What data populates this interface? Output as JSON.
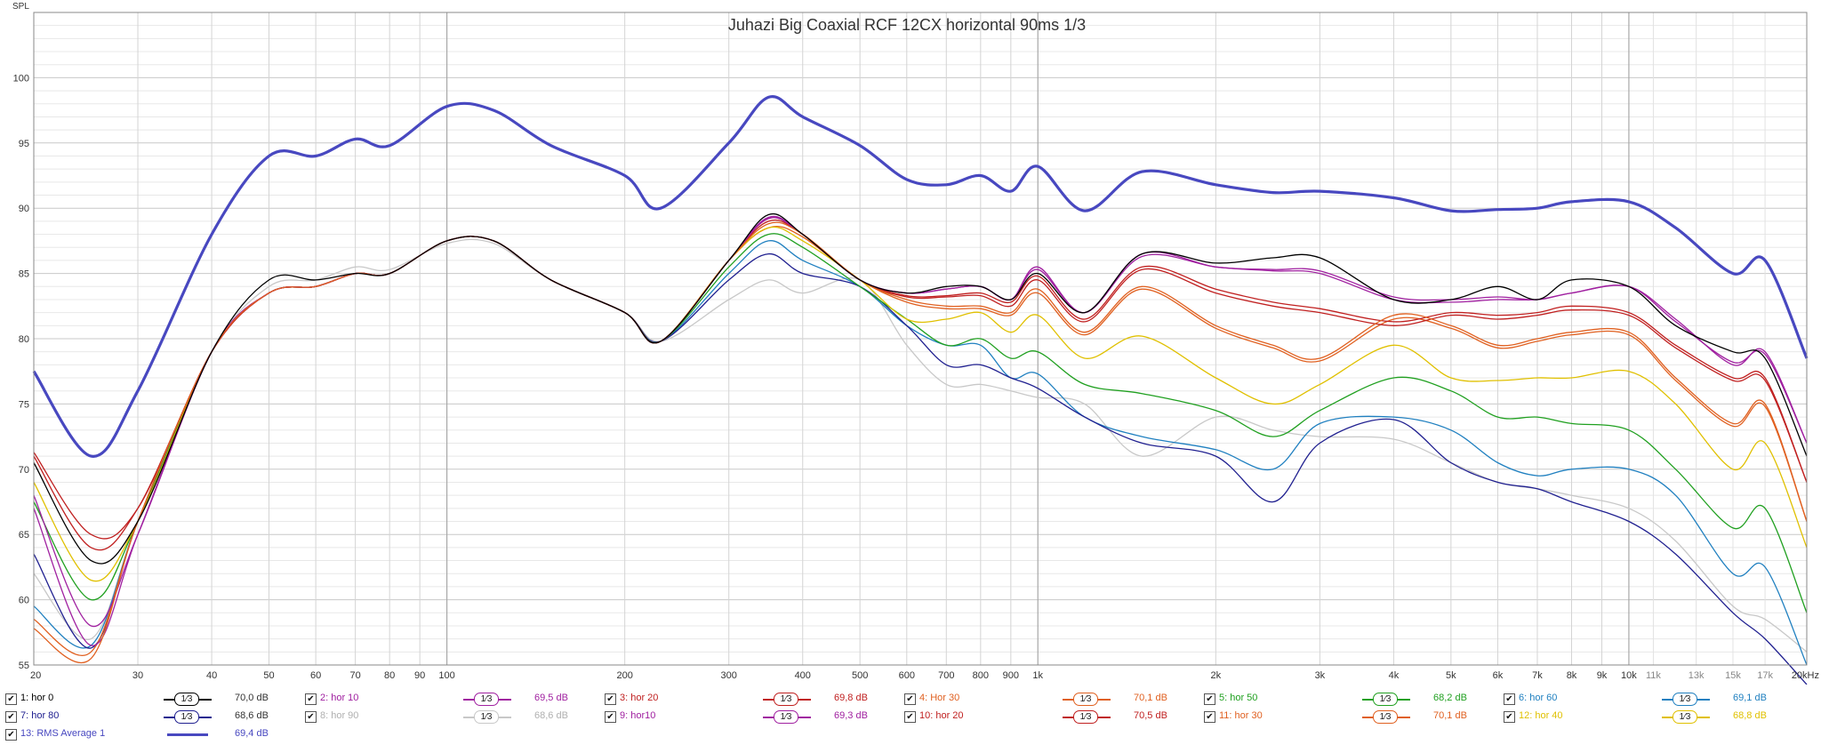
{
  "chart_data": {
    "type": "line",
    "title": "Juhazi Big Coaxial RCF 12CX horizontal 90ms 1/3",
    "ylabel": "SPL",
    "xlabel": "",
    "x_scale": "log",
    "xlim": [
      20,
      20000
    ],
    "ylim": [
      55,
      105
    ],
    "grid": true,
    "y_ticks": [
      "55",
      "60",
      "65",
      "70",
      "75",
      "80",
      "85",
      "90",
      "95",
      "100"
    ],
    "x_ticks": [
      "20",
      "30",
      "40",
      "50",
      "60",
      "70",
      "80",
      "90",
      "100",
      "200",
      "300",
      "400",
      "500",
      "600",
      "700",
      "800",
      "900",
      "1k",
      "2k",
      "3k",
      "4k",
      "5k",
      "6k",
      "7k",
      "8k",
      "9k",
      "10k",
      "11k",
      "13k",
      "15k",
      "17k",
      "20kHz"
    ],
    "x": [
      20,
      25,
      30,
      40,
      50,
      60,
      70,
      80,
      100,
      120,
      150,
      200,
      230,
      300,
      350,
      400,
      500,
      600,
      700,
      800,
      900,
      1000,
      1200,
      1500,
      2000,
      2500,
      3000,
      4000,
      5000,
      6000,
      7000,
      8000,
      10000,
      12000,
      15000,
      17000,
      20000
    ],
    "series": [
      {
        "name": "1: hor 0",
        "color": "#000000",
        "width": 1.3,
        "values": [
          70.5,
          63,
          66,
          79,
          84.5,
          84.5,
          85,
          85,
          87.5,
          87.5,
          84.5,
          82,
          79.8,
          86,
          89.5,
          88,
          84.5,
          83.5,
          84,
          84,
          83,
          85,
          82,
          86.5,
          85.8,
          86.2,
          86.2,
          83,
          83,
          84,
          83,
          84.5,
          84,
          81,
          79,
          78.5,
          71
        ]
      },
      {
        "name": "2: hor 10",
        "color": "#a020a0",
        "width": 1.3,
        "values": [
          67,
          56.5,
          65,
          79,
          83.5,
          84,
          85,
          85,
          87.5,
          87.5,
          84.5,
          82,
          79.8,
          86,
          89.3,
          88,
          84.5,
          83.5,
          83.8,
          84,
          83,
          85.5,
          82,
          86.5,
          85.5,
          85.3,
          85.2,
          83.2,
          83,
          83.2,
          83,
          83.5,
          84,
          81.5,
          78,
          79,
          72
        ]
      },
      {
        "name": "3: hor 20",
        "color": "#c02020",
        "width": 1.3,
        "values": [
          71.3,
          65,
          67,
          79,
          83.5,
          84,
          85,
          85,
          87.5,
          87.5,
          84.5,
          82,
          79.8,
          86,
          89.2,
          88,
          84.5,
          83.3,
          83.3,
          83.5,
          82.8,
          84.8,
          81.5,
          85.5,
          83.8,
          82.8,
          82.3,
          81.3,
          82,
          81.8,
          82,
          82.5,
          82,
          79.5,
          77,
          77,
          69
        ]
      },
      {
        "name": "4: Hor 30",
        "color": "#e06020",
        "width": 1.3,
        "values": [
          57.8,
          55.5,
          66,
          79,
          83.5,
          84,
          85,
          85,
          87.5,
          87.5,
          84.5,
          82,
          79.8,
          86,
          88.8,
          88,
          84.5,
          83,
          82.5,
          82.5,
          82,
          83.8,
          80.5,
          84,
          81,
          79.5,
          78.5,
          81.8,
          81,
          79.5,
          80,
          80.5,
          80.5,
          77,
          73.5,
          75,
          66
        ]
      },
      {
        "name": "5: hor 50",
        "color": "#20a020",
        "width": 1.3,
        "values": [
          67.5,
          60,
          66,
          79,
          83.5,
          84,
          85,
          85,
          87.5,
          87.5,
          84.5,
          82,
          79.8,
          85.5,
          88,
          87,
          84,
          81.5,
          79.5,
          80,
          78.5,
          79,
          76.5,
          75.8,
          74.5,
          72.5,
          74.5,
          77,
          76,
          74,
          74,
          73.5,
          73,
          70,
          65.5,
          67,
          59
        ]
      },
      {
        "name": "6: hor 60",
        "color": "#2080c0",
        "width": 1.3,
        "values": [
          59.5,
          56.5,
          66,
          79,
          83.5,
          84,
          85,
          85,
          87.5,
          87.5,
          84.5,
          82,
          79.8,
          85,
          87.5,
          86,
          84,
          81,
          79.5,
          79.5,
          77,
          77.3,
          74,
          72.5,
          71.5,
          70,
          73.5,
          74,
          73,
          70.5,
          69.5,
          70,
          70,
          68,
          62,
          62.5,
          55
        ]
      },
      {
        "name": "7: hor 80",
        "color": "#202090",
        "width": 1.3,
        "values": [
          63.5,
          56.3,
          66,
          79,
          83.5,
          84,
          85,
          85,
          87.5,
          87.5,
          84.5,
          82,
          79.8,
          84.5,
          86.5,
          85,
          84,
          81,
          78,
          78,
          77,
          76.2,
          74,
          72,
          71,
          67.5,
          72,
          73.8,
          70.5,
          69,
          68.5,
          67.5,
          66,
          63.5,
          59,
          57,
          53.5
        ]
      },
      {
        "name": "8: hor 90",
        "color": "#c8c8c8",
        "width": 1.3,
        "values": [
          62,
          57,
          66,
          79,
          84,
          84.5,
          85.5,
          85.3,
          87.3,
          87.3,
          84.5,
          82,
          79.8,
          83,
          84.5,
          83.5,
          84.5,
          79.5,
          76.5,
          76.5,
          76,
          75.5,
          75,
          71,
          74,
          73,
          72.5,
          72.3,
          70.5,
          69,
          68.5,
          68,
          67,
          64.5,
          59.5,
          58.5,
          56
        ]
      },
      {
        "name": "9: hor10",
        "color": "#a020a0",
        "width": 1.3,
        "values": [
          68,
          58,
          65,
          79,
          83.5,
          84,
          85,
          85,
          87.5,
          87.5,
          84.5,
          82,
          79.8,
          86,
          89.2,
          88,
          84.5,
          83.5,
          83.8,
          84,
          83,
          85.3,
          82,
          86.3,
          85.5,
          85.2,
          85,
          83,
          82.8,
          83,
          83,
          83.5,
          84,
          81.3,
          78.2,
          78.8,
          72
        ]
      },
      {
        "name": "10: hor 20",
        "color": "#c02020",
        "width": 1.3,
        "values": [
          71,
          64,
          67,
          79,
          83.5,
          84,
          85,
          85,
          87.5,
          87.5,
          84.5,
          82,
          79.8,
          86,
          89,
          88,
          84.5,
          83.2,
          83.2,
          83.3,
          82.5,
          84.5,
          81.3,
          85.3,
          83.5,
          82.5,
          82,
          81,
          81.8,
          81.5,
          81.8,
          82.2,
          81.8,
          79.3,
          76.8,
          76.8,
          69
        ]
      },
      {
        "name": "11: hor 30",
        "color": "#e06020",
        "width": 1.3,
        "values": [
          58.5,
          56,
          66,
          79,
          83.5,
          84,
          85,
          85,
          87.5,
          87.5,
          84.5,
          82,
          79.8,
          86,
          88.5,
          87.8,
          84.5,
          82.8,
          82.3,
          82.3,
          81.8,
          83.5,
          80.3,
          83.8,
          80.8,
          79.3,
          78.3,
          81.5,
          80.8,
          79.3,
          79.8,
          80.3,
          80.3,
          76.8,
          73.3,
          74.8,
          66
        ]
      },
      {
        "name": "12: hor 40",
        "color": "#e0c000",
        "width": 1.3,
        "values": [
          69,
          61.5,
          66,
          79,
          83.5,
          84,
          85,
          85,
          87.5,
          87.5,
          84.5,
          82,
          79.8,
          86,
          88.5,
          87.5,
          84.5,
          81.5,
          81.5,
          82,
          80.5,
          81.8,
          78.5,
          80.2,
          77,
          75,
          76.5,
          79.5,
          77,
          76.8,
          77,
          77,
          77.5,
          75,
          70,
          72,
          64
        ]
      },
      {
        "name": "13: RMS Average 1",
        "color": "#4848c0",
        "width": 3.2,
        "values": [
          77.5,
          71,
          76,
          88,
          94,
          94,
          95.3,
          94.8,
          97.8,
          97.5,
          94.8,
          92.5,
          90,
          95,
          98.5,
          97,
          94.8,
          92.2,
          91.8,
          92.5,
          91.3,
          93.2,
          89.8,
          92.8,
          91.8,
          91.2,
          91.3,
          90.8,
          89.8,
          89.9,
          90,
          90.5,
          90.5,
          88.5,
          85,
          86,
          78.5
        ]
      }
    ]
  },
  "legend": {
    "row1": [
      {
        "check": "✔",
        "name": "1: hor 0",
        "color": "#000000",
        "smooth": "1⁄3",
        "value": "70,0 dB"
      },
      {
        "check": "✔",
        "name": "2: hor 10",
        "color": "#a020a0",
        "smooth": "1⁄3",
        "value": "69,5 dB"
      },
      {
        "check": "✔",
        "name": "3: hor 20",
        "color": "#c02020",
        "smooth": "1⁄3",
        "value": "69,8 dB"
      },
      {
        "check": "✔",
        "name": "4: Hor 30",
        "color": "#e06020",
        "smooth": "1⁄3",
        "value": "70,1 dB"
      },
      {
        "check": "✔",
        "name": "5: hor 50",
        "color": "#20a020",
        "smooth": "1⁄3",
        "value": "68,2 dB"
      },
      {
        "check": "✔",
        "name": "6: hor 60",
        "color": "#2080c0",
        "smooth": "1⁄3",
        "value": "69,1 dB"
      }
    ],
    "row2": [
      {
        "check": "✔",
        "name": "7: hor 80",
        "color": "#202090",
        "smooth": "1⁄3",
        "value": "68,6 dB"
      },
      {
        "check": "✔",
        "name": "8: hor 90",
        "color": "#c8c8c8",
        "smooth": "1⁄3",
        "value": "68,6 dB"
      },
      {
        "check": "✔",
        "name": "9: hor10",
        "color": "#a020a0",
        "smooth": "1⁄3",
        "value": "69,3 dB"
      },
      {
        "check": "✔",
        "name": "10: hor 20",
        "color": "#c02020",
        "smooth": "1⁄3",
        "value": "70,5 dB"
      },
      {
        "check": "✔",
        "name": "11: hor 30",
        "color": "#e06020",
        "smooth": "1⁄3",
        "value": "70,1 dB"
      },
      {
        "check": "✔",
        "name": "12: hor 40",
        "color": "#e0c000",
        "smooth": "1⁄3",
        "value": "68,8 dB"
      }
    ],
    "row3": {
      "check": "✔",
      "name": "13: RMS Average 1",
      "color": "#4848c0",
      "value": "69,4 dB"
    }
  }
}
